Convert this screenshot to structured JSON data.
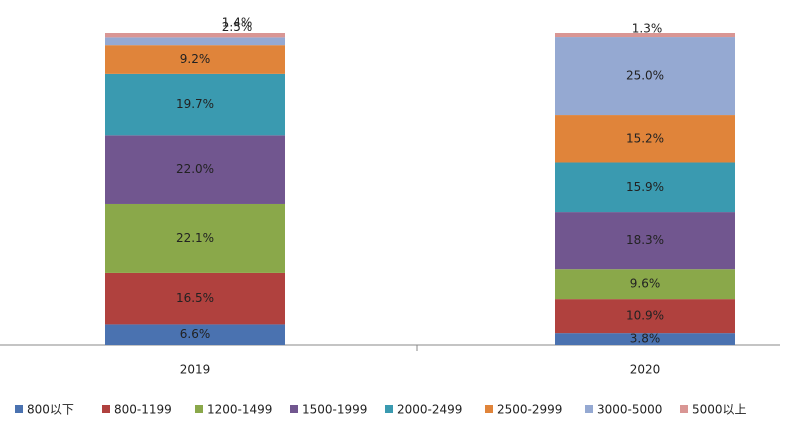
{
  "chart_data": {
    "type": "stacked_bar",
    "categories": [
      "2019",
      "2020"
    ],
    "series": [
      {
        "name": "800以下",
        "color": "#4a72b0",
        "values": [
          6.6,
          3.8
        ],
        "value_labels": [
          "6.6%",
          "3.8%"
        ]
      },
      {
        "name": "800-1199",
        "color": "#b0413e",
        "values": [
          16.5,
          10.9
        ],
        "value_labels": [
          "16.5%",
          "10.9%"
        ]
      },
      {
        "name": "1200-1499",
        "color": "#8aa84a",
        "values": [
          22.1,
          9.6
        ],
        "value_labels": [
          "22.1%",
          "9.6%"
        ]
      },
      {
        "name": "1500-1999",
        "color": "#71568f",
        "values": [
          22.0,
          18.3
        ],
        "value_labels": [
          "22.0%",
          "18.3%"
        ]
      },
      {
        "name": "2000-2499",
        "color": "#3a9ab0",
        "values": [
          19.7,
          15.9
        ],
        "value_labels": [
          "19.7%",
          "15.9%"
        ]
      },
      {
        "name": "2500-2999",
        "color": "#e0843a",
        "values": [
          9.2,
          15.2
        ],
        "value_labels": [
          "9.2%",
          "15.2%"
        ]
      },
      {
        "name": "3000-5000",
        "color": "#95a9d2",
        "values": [
          2.5,
          25.0
        ],
        "value_labels": [
          "2.5%",
          "25.0%"
        ]
      },
      {
        "name": "5000以上",
        "color": "#d99694",
        "values": [
          1.4,
          1.3
        ],
        "value_labels": [
          "1.4%",
          "1.3%"
        ]
      }
    ]
  }
}
